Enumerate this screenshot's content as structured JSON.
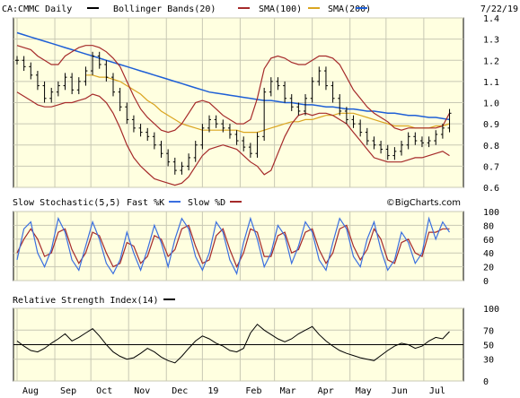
{
  "colors": {
    "panel_bg": "#ffffe0",
    "ohlc": "#000000",
    "bollinger": "#a52a2a",
    "sma100": "#daa520",
    "sma200": "#1e5fd6",
    "stoch_fast": "#3a6fe0",
    "stoch_slow": "#a52a2a",
    "rsi": "#000000",
    "grid": "#c8c8b4"
  },
  "chart_data": [
    {
      "type": "line",
      "panel": "price",
      "title": "CA:CMMC Daily",
      "date": "7/22/19",
      "copyright": "©BigCharts.com",
      "legend": [
        {
          "label": "CA:CMMC Daily",
          "color": "#000000"
        },
        {
          "label": "Bollinger Bands(20)",
          "color": "#a52a2a"
        },
        {
          "label": "SMA(100)",
          "color": "#daa520"
        },
        {
          "label": "SMA(200)",
          "color": "#1e5fd6"
        }
      ],
      "ylim": [
        0.6,
        1.4
      ],
      "yticks": [
        "1.4",
        "1.3",
        "1.2",
        "1.1",
        "1.0",
        "0.9",
        "0.8",
        "0.7",
        "0.6"
      ],
      "x_months": [
        "Aug",
        "Sep",
        "Oct",
        "Nov",
        "Dec",
        "19",
        "Feb",
        "Mar",
        "Apr",
        "May",
        "Jun",
        "Jul"
      ],
      "x": [
        0,
        4,
        8,
        12,
        16,
        20,
        24,
        28,
        32,
        36,
        40,
        44,
        48,
        52,
        56,
        60,
        64,
        68,
        72,
        76,
        80,
        84,
        88,
        92,
        96,
        100,
        104,
        108,
        112,
        116,
        120,
        124,
        128,
        132,
        136,
        140,
        144,
        148,
        152,
        156,
        160,
        164,
        168,
        172,
        176,
        180,
        184,
        188,
        192,
        196,
        200,
        204,
        208,
        212,
        216,
        220,
        224,
        228,
        232,
        236,
        240,
        244,
        248,
        252
      ],
      "series": [
        {
          "name": "close",
          "values": [
            1.2,
            1.17,
            1.13,
            1.08,
            1.02,
            1.05,
            1.08,
            1.12,
            1.06,
            1.1,
            1.15,
            1.22,
            1.18,
            1.12,
            1.05,
            0.98,
            0.92,
            0.88,
            0.86,
            0.84,
            0.8,
            0.76,
            0.72,
            0.68,
            0.7,
            0.74,
            0.8,
            0.88,
            0.92,
            0.9,
            0.88,
            0.85,
            0.82,
            0.79,
            0.76,
            0.84,
            1.05,
            1.1,
            1.08,
            1.02,
            0.98,
            0.96,
            1.02,
            1.1,
            1.15,
            1.08,
            1.02,
            0.96,
            0.92,
            0.9,
            0.86,
            0.82,
            0.8,
            0.78,
            0.75,
            0.77,
            0.8,
            0.84,
            0.82,
            0.81,
            0.82,
            0.85,
            0.88,
            0.95
          ]
        },
        {
          "name": "bollinger-upper",
          "values": [
            1.27,
            1.26,
            1.25,
            1.22,
            1.2,
            1.18,
            1.18,
            1.22,
            1.24,
            1.26,
            1.27,
            1.27,
            1.26,
            1.24,
            1.21,
            1.17,
            1.1,
            1.03,
            0.97,
            0.93,
            0.9,
            0.87,
            0.86,
            0.87,
            0.9,
            0.95,
            1.0,
            1.01,
            1.0,
            0.97,
            0.94,
            0.92,
            0.9,
            0.9,
            0.92,
            1.02,
            1.16,
            1.21,
            1.22,
            1.21,
            1.19,
            1.18,
            1.18,
            1.2,
            1.22,
            1.22,
            1.21,
            1.18,
            1.12,
            1.06,
            1.02,
            0.98,
            0.95,
            0.93,
            0.91,
            0.88,
            0.87,
            0.88,
            0.88,
            0.88,
            0.88,
            0.88,
            0.89,
            0.95
          ]
        },
        {
          "name": "bollinger-lower",
          "values": [
            1.05,
            1.03,
            1.01,
            0.99,
            0.98,
            0.98,
            0.99,
            1.0,
            1.0,
            1.01,
            1.02,
            1.04,
            1.03,
            1.0,
            0.95,
            0.88,
            0.8,
            0.74,
            0.7,
            0.67,
            0.64,
            0.63,
            0.62,
            0.61,
            0.62,
            0.65,
            0.7,
            0.75,
            0.78,
            0.79,
            0.8,
            0.79,
            0.78,
            0.75,
            0.72,
            0.7,
            0.66,
            0.68,
            0.76,
            0.84,
            0.9,
            0.94,
            0.95,
            0.94,
            0.95,
            0.95,
            0.94,
            0.92,
            0.9,
            0.86,
            0.82,
            0.78,
            0.74,
            0.73,
            0.72,
            0.72,
            0.72,
            0.73,
            0.74,
            0.74,
            0.75,
            0.76,
            0.77,
            0.75
          ]
        },
        {
          "name": "sma100",
          "values": [
            null,
            null,
            null,
            null,
            null,
            null,
            null,
            null,
            null,
            null,
            1.13,
            1.13,
            1.12,
            1.12,
            1.11,
            1.1,
            1.08,
            1.06,
            1.04,
            1.01,
            0.99,
            0.96,
            0.94,
            0.92,
            0.9,
            0.89,
            0.88,
            0.87,
            0.87,
            0.87,
            0.87,
            0.87,
            0.87,
            0.86,
            0.86,
            0.86,
            0.87,
            0.88,
            0.89,
            0.9,
            0.91,
            0.91,
            0.92,
            0.92,
            0.93,
            0.94,
            0.94,
            0.95,
            0.95,
            0.95,
            0.94,
            0.93,
            0.92,
            0.91,
            0.9,
            0.89,
            0.89,
            0.89,
            0.88,
            0.88,
            0.88,
            0.89,
            0.89,
            0.9
          ]
        },
        {
          "name": "sma200",
          "values": [
            1.33,
            1.32,
            1.31,
            1.3,
            1.29,
            1.28,
            1.27,
            1.26,
            1.25,
            1.24,
            1.23,
            1.22,
            1.21,
            1.2,
            1.19,
            1.18,
            1.17,
            1.16,
            1.15,
            1.14,
            1.13,
            1.12,
            1.11,
            1.1,
            1.09,
            1.08,
            1.07,
            1.06,
            1.05,
            1.045,
            1.04,
            1.035,
            1.03,
            1.025,
            1.02,
            1.015,
            1.01,
            1.01,
            1.005,
            1.0,
            1.0,
            0.995,
            0.99,
            0.99,
            0.985,
            0.98,
            0.98,
            0.975,
            0.97,
            0.97,
            0.965,
            0.96,
            0.96,
            0.955,
            0.95,
            0.95,
            0.945,
            0.94,
            0.94,
            0.935,
            0.93,
            0.93,
            0.925,
            0.92
          ]
        }
      ]
    },
    {
      "type": "line",
      "panel": "stochastic",
      "title": "Slow Stochastic(5,5)",
      "legend": [
        {
          "label": "Fast %K",
          "color": "#3a6fe0"
        },
        {
          "label": "Slow %D",
          "color": "#a52a2a"
        }
      ],
      "ylim": [
        0,
        100
      ],
      "yticks": [
        "100",
        "80",
        "60",
        "40",
        "20",
        "0"
      ],
      "series": [
        {
          "name": "Fast %K",
          "values": [
            30,
            75,
            85,
            40,
            20,
            45,
            90,
            70,
            30,
            15,
            50,
            85,
            60,
            25,
            10,
            30,
            70,
            40,
            15,
            45,
            80,
            55,
            20,
            60,
            90,
            75,
            35,
            15,
            40,
            85,
            70,
            30,
            10,
            55,
            90,
            60,
            20,
            40,
            80,
            65,
            25,
            50,
            85,
            70,
            30,
            15,
            55,
            90,
            75,
            35,
            20,
            60,
            85,
            45,
            15,
            30,
            70,
            55,
            25,
            40,
            90,
            60,
            85,
            70
          ]
        },
        {
          "name": "Slow %D",
          "values": [
            40,
            60,
            75,
            60,
            35,
            40,
            70,
            75,
            45,
            25,
            40,
            70,
            65,
            40,
            20,
            25,
            55,
            50,
            25,
            35,
            65,
            60,
            35,
            45,
            75,
            80,
            50,
            25,
            30,
            65,
            75,
            45,
            20,
            40,
            75,
            70,
            35,
            35,
            65,
            70,
            40,
            45,
            70,
            75,
            45,
            25,
            40,
            75,
            80,
            50,
            30,
            45,
            75,
            60,
            30,
            25,
            55,
            60,
            40,
            35,
            70,
            70,
            75,
            75
          ]
        }
      ]
    },
    {
      "type": "line",
      "panel": "rsi",
      "title": "Relative Strength Index(14)",
      "ylim": [
        0,
        100
      ],
      "yticks": [
        "100",
        "70",
        "50",
        "30",
        "0"
      ],
      "series": [
        {
          "name": "RSI",
          "values": [
            55,
            48,
            42,
            40,
            45,
            52,
            58,
            65,
            55,
            60,
            66,
            72,
            62,
            50,
            40,
            34,
            30,
            32,
            38,
            45,
            40,
            33,
            28,
            25,
            34,
            45,
            55,
            62,
            58,
            52,
            48,
            42,
            40,
            45,
            66,
            78,
            70,
            64,
            58,
            54,
            58,
            65,
            70,
            75,
            64,
            55,
            48,
            42,
            38,
            35,
            32,
            30,
            28,
            35,
            42,
            48,
            52,
            50,
            45,
            48,
            55,
            60,
            58,
            68
          ]
        }
      ]
    }
  ]
}
